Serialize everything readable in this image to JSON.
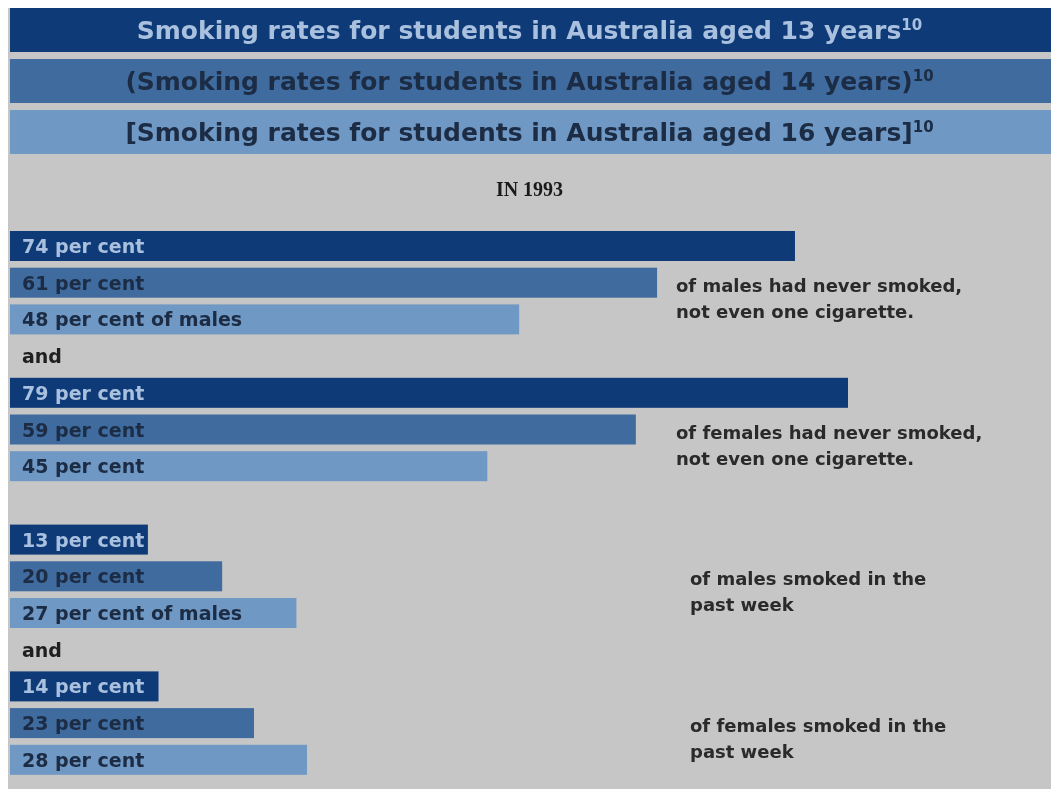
{
  "chart_data": {
    "type": "bar",
    "orientation": "horizontal",
    "subtitle": "IN 1993",
    "legend": "top",
    "categories": [
      "of males had never smoked, not even one cigarette.",
      "of females had never smoked, not even one cigarette.",
      "of males smoked in the past week",
      "of females smoked in the past week"
    ],
    "series": [
      {
        "name": "Smoking rates for students in Australia aged 13 years$^{10}$",
        "color": "#0e3a78",
        "values": [
          74,
          79,
          13,
          14
        ],
        "value_labels": [
          "74 per cent",
          "79 per cent",
          "13 per cent",
          "14 per cent"
        ]
      },
      {
        "name": "(Smoking rates for students in Australia aged 14 years)$^{10}$",
        "color": "#3f6b9e",
        "values": [
          61,
          59,
          20,
          23
        ],
        "value_labels": [
          "61 per cent",
          "59 per cent",
          "20 per cent",
          "23 per cent"
        ]
      },
      {
        "name": "[Smoking rates for students in Australia aged 16 years]$^{10}$",
        "color": "#6f98c4",
        "values": [
          48,
          45,
          27,
          28
        ],
        "value_labels": [
          "48 per cent of males",
          "45 per cent",
          "27 per cent of males",
          "28 per cent"
        ]
      }
    ],
    "annotations": [
      "and",
      "and"
    ]
  }
}
